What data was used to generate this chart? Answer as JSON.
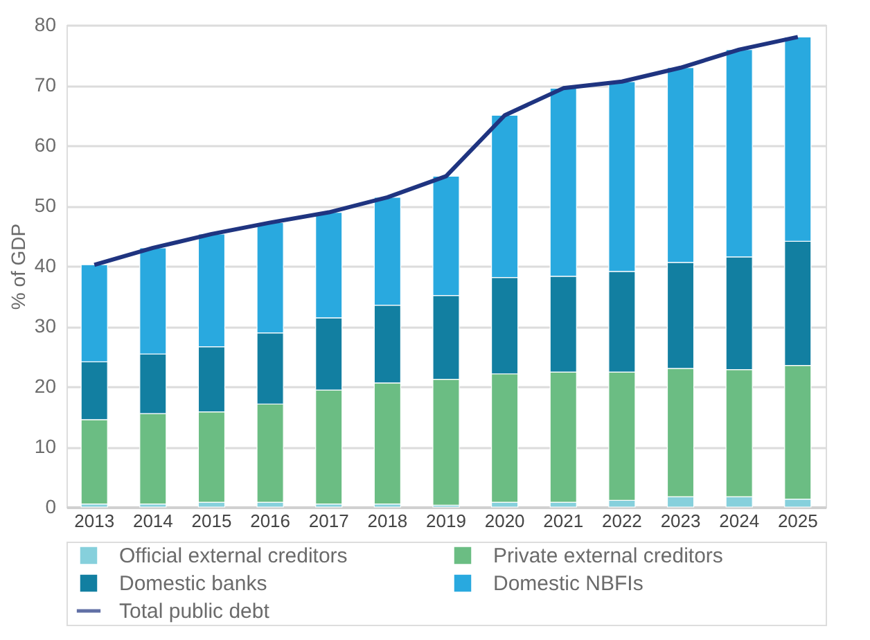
{
  "chart_data": {
    "type": "bar",
    "stacked": true,
    "ylabel": "% of GDP",
    "categories": [
      "2013",
      "2014",
      "2015",
      "2016",
      "2017",
      "2018",
      "2019",
      "2020",
      "2021",
      "2022",
      "2023",
      "2024",
      "2025"
    ],
    "series": [
      {
        "name": "Official external creditors",
        "color": "#86d0dc",
        "values": [
          0.5,
          0.5,
          0.8,
          0.8,
          0.5,
          0.5,
          0.3,
          0.8,
          0.8,
          1.1,
          1.7,
          1.7,
          1.3
        ]
      },
      {
        "name": "Private external creditors",
        "color": "#6bbd83",
        "values": [
          14.0,
          15.0,
          15.0,
          16.3,
          18.9,
          20.1,
          20.9,
          21.3,
          21.6,
          21.3,
          21.3,
          21.1,
          22.2
        ]
      },
      {
        "name": "Domestic banks",
        "color": "#127fa1",
        "values": [
          9.6,
          9.9,
          10.8,
          11.8,
          12.0,
          12.9,
          13.9,
          16.0,
          15.9,
          16.7,
          17.6,
          18.7,
          20.6
        ]
      },
      {
        "name": "Domestic NBFIs",
        "color": "#29a9df",
        "values": [
          16.1,
          17.6,
          18.7,
          18.3,
          17.5,
          17.9,
          19.8,
          26.9,
          31.2,
          31.5,
          32.3,
          34.4,
          33.9
        ]
      },
      {
        "name": "Total public debt",
        "type": "line",
        "color": "#1f3480",
        "values": [
          40.2,
          43.0,
          45.3,
          47.2,
          48.9,
          51.4,
          54.9,
          65.0,
          69.5,
          70.6,
          72.9,
          75.9,
          78.0
        ]
      }
    ],
    "ylim": [
      0,
      80
    ],
    "yticks": [
      0,
      10,
      20,
      30,
      40,
      50,
      60,
      70,
      80
    ],
    "grid": "y",
    "legend": "bottom",
    "marker": "none",
    "line_style": "solid"
  }
}
